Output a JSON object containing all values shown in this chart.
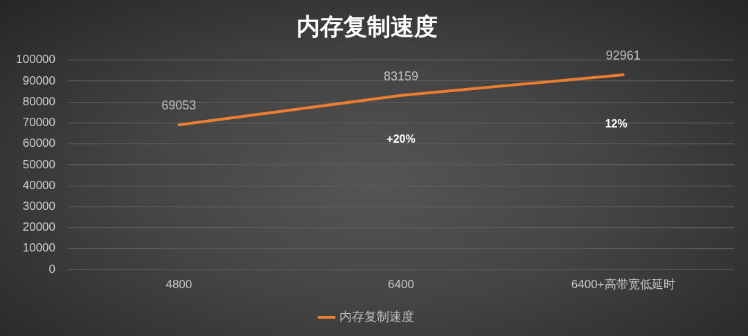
{
  "chart_data": {
    "type": "line",
    "title": "内存复制速度",
    "categories": [
      "4800",
      "6400",
      "6400+高带宽低延时"
    ],
    "series": [
      {
        "name": "内存复制速度",
        "color": "#ed7d31",
        "values": [
          69053,
          83159,
          92961
        ]
      }
    ],
    "ylim": [
      0,
      100000
    ],
    "yticks": [
      0,
      10000,
      20000,
      30000,
      40000,
      50000,
      60000,
      70000,
      80000,
      90000,
      100000
    ],
    "grid": "y",
    "legend": "bottom",
    "marker": "none",
    "line_style": "solid",
    "data_labels": true,
    "annotations": [
      "+20%",
      "12%"
    ]
  }
}
